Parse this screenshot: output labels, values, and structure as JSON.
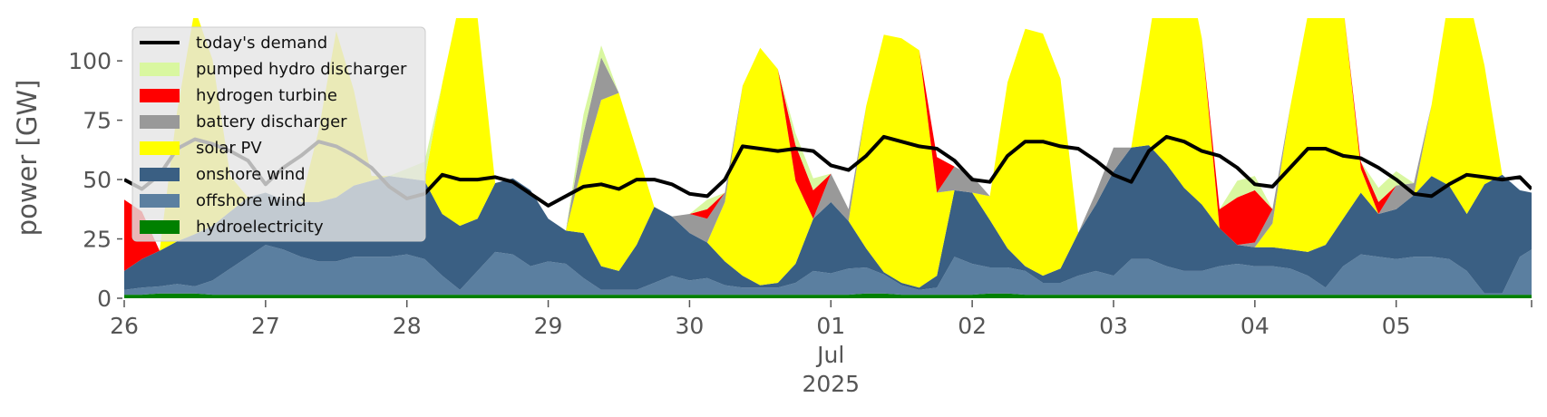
{
  "chart_data": {
    "type": "area",
    "title": "",
    "xlabel": "",
    "ylabel": "power [GW]",
    "ylim": [
      0,
      118
    ],
    "xlim": [
      "2025-06-26T00:00",
      "2025-07-05T23:00"
    ],
    "yticks": [
      0,
      25,
      50,
      75,
      100
    ],
    "ytick_labels": [
      "0",
      "25",
      "50",
      "75",
      "100"
    ],
    "xticks": [
      "2025-06-26",
      "2025-06-27",
      "2025-06-28",
      "2025-06-29",
      "2025-06-30",
      "2025-07-01",
      "2025-07-02",
      "2025-07-03",
      "2025-07-04",
      "2025-07-05"
    ],
    "xtick_labels": [
      "26",
      "27",
      "28",
      "29",
      "30",
      "01",
      "02",
      "03",
      "04",
      "05"
    ],
    "xtick_month_label": "Jul",
    "xtick_year_label": "2025",
    "legend_position": "upper-left",
    "grid": false,
    "background": "#ffffff",
    "x_unit": "day",
    "x": [
      0,
      0.125,
      0.25,
      0.375,
      0.5,
      0.625,
      0.75,
      0.875,
      1,
      1.125,
      1.25,
      1.375,
      1.5,
      1.625,
      1.75,
      1.875,
      2,
      2.125,
      2.25,
      2.375,
      2.5,
      2.625,
      2.75,
      2.875,
      3,
      3.125,
      3.25,
      3.375,
      3.5,
      3.625,
      3.75,
      3.875,
      4,
      4.125,
      4.25,
      4.375,
      4.5,
      4.625,
      4.75,
      4.875,
      5,
      5.125,
      5.25,
      5.375,
      5.5,
      5.625,
      5.75,
      5.875,
      6,
      6.125,
      6.25,
      6.375,
      6.5,
      6.625,
      6.75,
      6.875,
      7,
      7.125,
      7.25,
      7.375,
      7.5,
      7.625,
      7.75,
      7.875,
      8,
      8.125,
      8.25,
      8.375,
      8.5,
      8.625,
      8.75,
      8.875,
      9,
      9.125,
      9.25,
      9.375,
      9.5,
      9.625,
      9.75,
      9.875,
      9.958
    ],
    "stack_series": [
      {
        "name": "hydroelectricity",
        "color": "#008000",
        "values": [
          1.5,
          1.5,
          2,
          2,
          2,
          1.5,
          1.5,
          1.5,
          1.5,
          1.5,
          1.5,
          1.5,
          1.5,
          1.5,
          1.5,
          1.5,
          1.5,
          1.5,
          1.5,
          1.5,
          1.5,
          1.5,
          1.5,
          1.5,
          1.5,
          1.5,
          1.5,
          1.5,
          1.5,
          1.5,
          1.5,
          1.5,
          1.5,
          1.5,
          1.5,
          1.5,
          1.5,
          1.5,
          1.5,
          1.5,
          1.5,
          1.5,
          2,
          2,
          1.5,
          1.5,
          1.5,
          1.5,
          1.5,
          2,
          2,
          1.5,
          1.5,
          1.5,
          1.5,
          1.5,
          1.5,
          1.5,
          1.5,
          1.5,
          1.5,
          1.5,
          1.5,
          1.5,
          1.5,
          1.5,
          1.5,
          1.5,
          1.5,
          1.5,
          1.5,
          1.5,
          1.5,
          1.5,
          1.5,
          1.5,
          1.5,
          1.5,
          1.5,
          1.5,
          1.5
        ]
      },
      {
        "name": "offshore wind",
        "color": "#5b7fa0",
        "values": [
          2,
          3,
          3,
          4,
          3,
          6,
          11,
          16,
          21,
          19,
          16,
          14,
          14,
          16,
          16,
          16,
          17,
          15,
          8,
          2,
          10,
          18,
          17,
          12,
          14,
          13,
          7,
          2,
          2,
          2,
          5,
          8,
          6,
          7,
          4,
          3,
          3,
          3,
          5,
          10,
          9,
          11,
          11,
          8,
          4,
          2,
          3,
          16,
          13,
          11,
          11,
          10,
          5,
          5,
          8,
          10,
          8,
          15,
          15,
          12,
          10,
          10,
          12,
          13,
          12,
          12,
          11,
          8,
          3,
          12,
          17,
          16,
          15,
          16,
          16,
          15,
          10,
          0.5,
          0.5,
          16,
          19
        ]
      },
      {
        "name": "onshore wind",
        "color": "#3a5f83",
        "values": [
          8,
          12,
          15,
          18,
          22,
          23,
          24,
          25,
          22,
          21,
          23,
          25,
          27,
          30,
          32,
          34,
          32,
          33,
          26,
          27,
          22,
          29,
          32,
          32,
          18,
          14,
          19,
          10,
          8,
          19,
          32,
          25,
          20,
          15,
          10,
          5,
          1,
          2,
          8,
          22,
          30,
          20,
          8,
          1,
          1,
          1,
          5,
          28,
          30,
          20,
          8,
          2,
          3,
          6,
          18,
          28,
          44,
          47,
          48,
          43,
          35,
          28,
          16,
          8,
          8,
          8,
          8,
          10,
          18,
          20,
          26,
          18,
          21,
          26,
          34,
          31,
          24,
          46,
          50,
          28,
          24
        ]
      },
      {
        "name": "solar PV",
        "color": "#ffff00",
        "values": [
          0,
          0,
          0,
          55,
          95,
          70,
          15,
          0,
          0,
          0,
          0,
          30,
          70,
          40,
          2,
          0,
          0,
          0,
          55,
          95,
          85,
          0,
          0,
          0,
          0,
          0,
          30,
          70,
          75,
          40,
          0,
          0,
          0,
          0,
          25,
          80,
          100,
          90,
          35,
          0,
          0,
          0,
          60,
          100,
          103,
          100,
          35,
          0,
          0,
          10,
          70,
          100,
          102,
          80,
          0,
          0,
          0,
          0,
          45,
          100,
          100,
          70,
          0,
          0,
          0,
          10,
          60,
          100,
          100,
          90,
          10,
          0,
          0,
          0,
          30,
          80,
          95,
          50,
          0,
          0,
          0
        ]
      },
      {
        "name": "battery discharger",
        "color": "#999999",
        "values": [
          0,
          0,
          0,
          0,
          0,
          0,
          0,
          0,
          0,
          0,
          0,
          0,
          0,
          0,
          0,
          0,
          0,
          0,
          0,
          0,
          0,
          0,
          0,
          0,
          0,
          0,
          12,
          18,
          0,
          0,
          0,
          0,
          8,
          10,
          4,
          0,
          0,
          0,
          0,
          0,
          12,
          5,
          0,
          0,
          0,
          0,
          0,
          10,
          7,
          0,
          0,
          0,
          0,
          0,
          0,
          5,
          10,
          0,
          0,
          0,
          0,
          0,
          0,
          0,
          2,
          6,
          0,
          0,
          0,
          0,
          0,
          0,
          10,
          5,
          0,
          0,
          0,
          0,
          0,
          0,
          0
        ]
      },
      {
        "name": "hydrogen turbine",
        "color": "#ff0000",
        "values": [
          30,
          20,
          0,
          0,
          0,
          0,
          0,
          0,
          0,
          0,
          0,
          0,
          0,
          0,
          0,
          0,
          0,
          0,
          0,
          0,
          0,
          0,
          0,
          0,
          0,
          0,
          0,
          0,
          0,
          0,
          0,
          0,
          0,
          4,
          0,
          0,
          0,
          0,
          15,
          12,
          0,
          0,
          0,
          0,
          0,
          0,
          15,
          0,
          0,
          0,
          0,
          0,
          0,
          0,
          0,
          0,
          0,
          0,
          0,
          0,
          0,
          0,
          8,
          20,
          22,
          0,
          0,
          0,
          0,
          0,
          3,
          5,
          0,
          0,
          0,
          0,
          0,
          0,
          0,
          0,
          0
        ]
      },
      {
        "name": "pumped hydro discharger",
        "color": "#d9f7a0",
        "values": [
          0,
          0,
          0,
          0,
          0,
          0,
          0,
          0,
          0,
          0,
          0,
          0,
          0,
          0,
          0,
          0,
          4,
          8,
          0,
          0,
          0,
          0,
          0,
          0,
          0,
          0,
          8,
          5,
          0,
          0,
          0,
          0,
          0,
          4,
          0,
          0,
          0,
          0,
          5,
          5,
          0,
          0,
          0,
          0,
          0,
          0,
          0,
          0,
          0,
          0,
          0,
          0,
          0,
          0,
          0,
          0,
          0,
          0,
          0,
          0,
          0,
          0,
          0,
          7,
          6,
          0,
          0,
          0,
          0,
          0,
          0,
          6,
          6,
          0,
          0,
          0,
          0,
          0,
          0,
          0,
          0
        ]
      }
    ],
    "line_series": [
      {
        "name": "today's demand",
        "color": "#000000",
        "x": [
          0,
          0.125,
          0.25,
          0.375,
          0.5,
          0.625,
          0.75,
          0.875,
          1,
          1.125,
          1.25,
          1.375,
          1.5,
          1.625,
          1.75,
          1.875,
          2,
          2.125,
          2.25,
          2.375,
          2.5,
          2.625,
          2.75,
          2.875,
          3,
          3.125,
          3.25,
          3.375,
          3.5,
          3.625,
          3.75,
          3.875,
          4,
          4.125,
          4.25,
          4.375,
          4.5,
          4.625,
          4.75,
          4.875,
          5,
          5.125,
          5.25,
          5.375,
          5.5,
          5.625,
          5.75,
          5.875,
          6,
          6.125,
          6.25,
          6.375,
          6.5,
          6.625,
          6.75,
          6.875,
          7,
          7.125,
          7.25,
          7.375,
          7.5,
          7.625,
          7.75,
          7.875,
          8,
          8.125,
          8.25,
          8.375,
          8.5,
          8.625,
          8.75,
          8.875,
          9,
          9.125,
          9.25,
          9.375,
          9.5,
          9.625,
          9.75,
          9.875,
          9.958
        ],
        "values": [
          50,
          46,
          52,
          63,
          67,
          65,
          62,
          58,
          48,
          55,
          60,
          66,
          64,
          60,
          55,
          47,
          42,
          44,
          52,
          50,
          50,
          51,
          49,
          44,
          39,
          43,
          47,
          48,
          46,
          50,
          50,
          48,
          44,
          43,
          50,
          64,
          63,
          62,
          63,
          62,
          56,
          54,
          60,
          68,
          66,
          64,
          63,
          58,
          50,
          49,
          60,
          66,
          66,
          64,
          63,
          58,
          52,
          49,
          62,
          68,
          66,
          62,
          60,
          55,
          48,
          47,
          55,
          63,
          63,
          60,
          59,
          55,
          50,
          44,
          43,
          48,
          52,
          51,
          50,
          51,
          46
        ]
      }
    ],
    "legend": [
      "today's demand",
      "pumped hydro discharger",
      "hydrogen turbine",
      "battery discharger",
      "solar PV",
      "onshore wind",
      "offshore wind",
      "hydroelectricity"
    ]
  }
}
